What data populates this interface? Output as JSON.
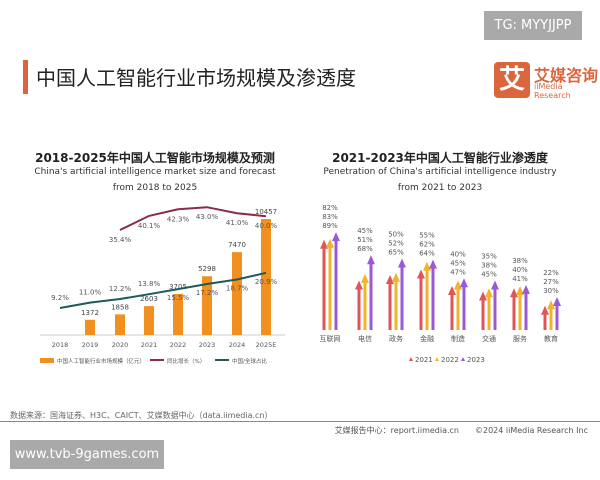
{
  "watermark_top": "TG: MYYJJPP",
  "page_title": "中国人工智能行业市场规模及渗透度",
  "logo": {
    "mark": "艾",
    "cn": "艾媒咨询",
    "en": "iiMedia Research"
  },
  "colors": {
    "accent": "#e0623a",
    "bar": "#f0901e",
    "growth": "#8b2a4a",
    "share": "#1f5a5a",
    "y2021": "#e0555a",
    "y2022": "#f0b429",
    "y2023": "#9b59d6"
  },
  "chart_data": [
    {
      "type": "bar",
      "title": "2018-2025年中国人工智能市场规模及预测",
      "subtitle": [
        "China's artificial intelligence market size and forecast",
        "from 2018 to 2025"
      ],
      "categories": [
        "2018",
        "2019",
        "2020",
        "2021",
        "2022",
        "2023",
        "2024",
        "2025E"
      ],
      "series": [
        {
          "name": "中国人工智能行业市场规模（亿元）",
          "type": "bar",
          "values": [
            null,
            1372,
            1858,
            2603,
            3705,
            5298,
            7470,
            10457
          ]
        },
        {
          "name": "同比增长（%）",
          "type": "line",
          "values": [
            null,
            null,
            35.4,
            40.1,
            42.3,
            43.0,
            41.0,
            40.0
          ]
        },
        {
          "name": "中国/全球占比",
          "type": "line",
          "values": [
            9.2,
            11.0,
            12.2,
            13.8,
            15.5,
            17.2,
            18.7,
            20.9
          ]
        }
      ],
      "legend": "bottom"
    },
    {
      "type": "bar",
      "title": "2021-2023年中国人工智能行业渗透度",
      "subtitle": [
        "Penetration of China's artificial intelligence industry",
        "from 2021 to 2023"
      ],
      "categories": [
        "互联网",
        "电信",
        "政务",
        "金融",
        "制造",
        "交通",
        "服务",
        "教育"
      ],
      "unit": "%",
      "series": [
        {
          "name": "2021",
          "values": [
            82,
            45,
            50,
            55,
            40,
            35,
            38,
            22
          ]
        },
        {
          "name": "2022",
          "values": [
            83,
            51,
            52,
            62,
            45,
            38,
            40,
            27
          ]
        },
        {
          "name": "2023",
          "values": [
            89,
            68,
            65,
            64,
            47,
            45,
            41,
            30
          ]
        }
      ],
      "legend": "bottom"
    }
  ],
  "source": "数据来源：国海证券、H3C、CAICT、艾媒数据中心（data.iimedia.cn）",
  "footer": "艾媒报告中心：report.iimedia.cn　　©2024 iiMedia Research Inc",
  "watermark_bottom": "www.tvb-9games.com"
}
